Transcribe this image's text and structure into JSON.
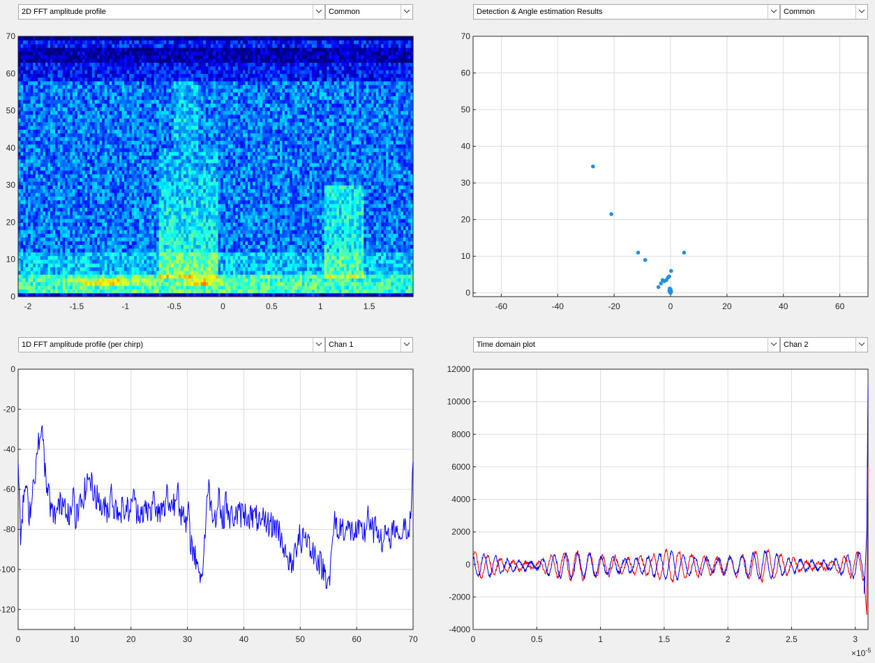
{
  "panels": {
    "top_left": {
      "title": "2D FFT amplitude profile",
      "mode": "Common"
    },
    "top_right": {
      "title": "Detection & Angle estimation Results",
      "mode": "Common"
    },
    "bottom_left": {
      "title": "1D FFT amplitude profile (per chirp)",
      "mode": "Chan 1"
    },
    "bottom_right": {
      "title": "Time domain plot",
      "mode": "Chan 2"
    }
  },
  "colors": {
    "blue_line": "#0000ff",
    "red_line": "#ff0000",
    "scatter": "#1e90e8",
    "grid": "#dcdcdc"
  },
  "chart_data": [
    {
      "id": "heatmap",
      "type": "heatmap",
      "xlim": [
        -2.1,
        1.95
      ],
      "ylim": [
        0,
        70
      ],
      "xticks": [
        -2,
        -1.5,
        -1,
        -0.5,
        0,
        0.5,
        1,
        1.5
      ],
      "xtick_labels": [
        "-2",
        "-1.5",
        "-1",
        "-0.5",
        "0",
        "0.5",
        "1",
        "1.5"
      ],
      "yticks": [
        0,
        10,
        20,
        30,
        40,
        50,
        60,
        70
      ],
      "ytick_labels": [
        "0",
        "10",
        "20",
        "30",
        "40",
        "50",
        "60",
        "70"
      ],
      "grid": false,
      "colormap": "jet"
    },
    {
      "id": "scatter",
      "type": "scatter",
      "xlim": [
        -70,
        70
      ],
      "ylim": [
        -1,
        70
      ],
      "xticks": [
        -60,
        -40,
        -20,
        0,
        20,
        40,
        60
      ],
      "xtick_labels": [
        "-60",
        "-40",
        "-20",
        "0",
        "20",
        "40",
        "60"
      ],
      "yticks": [
        0,
        10,
        20,
        30,
        40,
        50,
        60,
        70
      ],
      "ytick_labels": [
        "0",
        "10",
        "20",
        "30",
        "40",
        "50",
        "60",
        "70"
      ],
      "grid": true,
      "points": [
        [
          -27.5,
          34.5
        ],
        [
          -21,
          21.5
        ],
        [
          -11.5,
          11
        ],
        [
          -9,
          9
        ],
        [
          4.8,
          11
        ],
        [
          0.2,
          6
        ],
        [
          -0.5,
          4.5
        ],
        [
          -0.9,
          4.2
        ],
        [
          -1.5,
          3.5
        ],
        [
          -2.2,
          3.2
        ],
        [
          -2.8,
          3.5
        ],
        [
          -3.4,
          2.6
        ],
        [
          -4.3,
          1.6
        ],
        [
          -0.3,
          1.2
        ],
        [
          0,
          1
        ],
        [
          -0.4,
          0.6
        ],
        [
          0.2,
          0.4
        ],
        [
          -0.2,
          0.2
        ],
        [
          0,
          0
        ]
      ]
    },
    {
      "id": "fft1d",
      "type": "line",
      "xlim": [
        0,
        70
      ],
      "ylim": [
        -130,
        0
      ],
      "xticks": [
        0,
        10,
        20,
        30,
        40,
        50,
        60,
        70
      ],
      "xtick_labels": [
        "0",
        "10",
        "20",
        "30",
        "40",
        "50",
        "60",
        "70"
      ],
      "yticks": [
        0,
        -20,
        -40,
        -60,
        -80,
        -100,
        -120
      ],
      "ytick_labels": [
        "0",
        "-20",
        "-40",
        "-60",
        "-80",
        "-100",
        "-120"
      ],
      "grid": true,
      "series_color": "#0000ff",
      "anchors": [
        [
          0,
          -46
        ],
        [
          0.4,
          -85
        ],
        [
          1.2,
          -58
        ],
        [
          2,
          -72
        ],
        [
          3.6,
          -38
        ],
        [
          4.4,
          -32
        ],
        [
          5,
          -62
        ],
        [
          6.2,
          -74
        ],
        [
          8,
          -65
        ],
        [
          10,
          -77
        ],
        [
          12.5,
          -55
        ],
        [
          15,
          -70
        ],
        [
          20,
          -70
        ],
        [
          25,
          -72
        ],
        [
          28,
          -66
        ],
        [
          30,
          -80
        ],
        [
          32.5,
          -106
        ],
        [
          33.5,
          -68
        ],
        [
          36,
          -75
        ],
        [
          40,
          -72
        ],
        [
          46,
          -79
        ],
        [
          48.5,
          -100
        ],
        [
          50,
          -78
        ],
        [
          55.2,
          -106
        ],
        [
          56,
          -77
        ],
        [
          60,
          -82
        ],
        [
          64,
          -80
        ],
        [
          68,
          -82
        ],
        [
          69.5,
          -77
        ],
        [
          70,
          -50
        ]
      ],
      "spikes": [
        [
          3.9,
          -34
        ],
        [
          5.4,
          -57
        ],
        [
          9.8,
          -58
        ],
        [
          12.6,
          -54
        ],
        [
          16.5,
          -57
        ],
        [
          20.5,
          -59
        ],
        [
          24,
          -60
        ],
        [
          26.4,
          -57
        ],
        [
          28.3,
          -56
        ],
        [
          30.2,
          -66
        ],
        [
          33.8,
          -55
        ],
        [
          35.6,
          -58
        ],
        [
          36.8,
          -60
        ],
        [
          31.8,
          -96
        ],
        [
          43,
          -78
        ],
        [
          47.6,
          -94
        ],
        [
          50.2,
          -92
        ],
        [
          52,
          -95
        ],
        [
          55,
          -104
        ],
        [
          56.8,
          -85
        ],
        [
          62,
          -68
        ],
        [
          64.5,
          -92
        ],
        [
          66,
          -90
        ],
        [
          67.5,
          -85
        ]
      ]
    },
    {
      "id": "timedomain",
      "type": "line",
      "xlim": [
        0,
        3.1
      ],
      "ylim": [
        -4000,
        12000
      ],
      "xticks": [
        0,
        0.5,
        1,
        1.5,
        2,
        2.5,
        3
      ],
      "xtick_labels": [
        "0",
        "0.5",
        "1",
        "1.5",
        "2",
        "2.5",
        "3"
      ],
      "yticks": [
        -4000,
        -2000,
        0,
        2000,
        4000,
        6000,
        8000,
        10000,
        12000
      ],
      "ytick_labels": [
        "-4000",
        "-2000",
        "0",
        "2000",
        "4000",
        "6000",
        "8000",
        "10000",
        "12000"
      ],
      "grid": true,
      "x_exponent": "×10",
      "x_exponent_power": "-5",
      "series": [
        {
          "color": "#ff0000",
          "envelope": [
            [
              0,
              900
            ],
            [
              0.15,
              500
            ],
            [
              0.3,
              300
            ],
            [
              0.5,
              150
            ],
            [
              0.6,
              600
            ],
            [
              0.8,
              900
            ],
            [
              1.0,
              700
            ],
            [
              1.2,
              450
            ],
            [
              1.4,
              600
            ],
            [
              1.55,
              1050
            ],
            [
              1.7,
              700
            ],
            [
              1.9,
              450
            ],
            [
              2.1,
              650
            ],
            [
              2.3,
              1000
            ],
            [
              2.45,
              550
            ],
            [
              2.6,
              250
            ],
            [
              2.8,
              200
            ],
            [
              2.95,
              650
            ],
            [
              3.05,
              900
            ]
          ],
          "tail": [
            [
              3.07,
              -900
            ],
            [
              3.09,
              -3100
            ],
            [
              3.1,
              6000
            ]
          ]
        },
        {
          "color": "#0000ff",
          "envelope": [
            [
              0,
              700
            ],
            [
              0.15,
              600
            ],
            [
              0.3,
              280
            ],
            [
              0.5,
              200
            ],
            [
              0.6,
              600
            ],
            [
              0.8,
              800
            ],
            [
              1.0,
              600
            ],
            [
              1.2,
              400
            ],
            [
              1.4,
              550
            ],
            [
              1.55,
              900
            ],
            [
              1.7,
              600
            ],
            [
              1.9,
              400
            ],
            [
              2.1,
              600
            ],
            [
              2.3,
              900
            ],
            [
              2.45,
              500
            ],
            [
              2.6,
              300
            ],
            [
              2.8,
              250
            ],
            [
              2.95,
              700
            ],
            [
              3.05,
              850
            ]
          ],
          "tail": [
            [
              3.07,
              -1800
            ],
            [
              3.09,
              2000
            ],
            [
              3.1,
              11000
            ]
          ]
        }
      ]
    }
  ]
}
